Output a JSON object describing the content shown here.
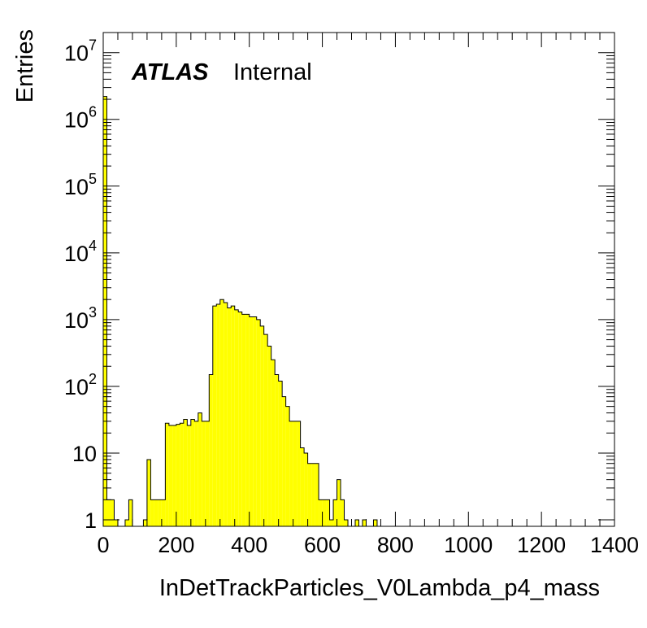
{
  "chart_data": {
    "type": "bar",
    "style": "filled-histogram",
    "xlabel": "InDetTrackParticles_V0Lambda_p4_mass",
    "ylabel": "Entries",
    "experiment_label": "ATLAS",
    "status_label": "Internal",
    "xlim": [
      0,
      1400
    ],
    "ylim": [
      0.8,
      20000000
    ],
    "y_scale": "log",
    "grid": false,
    "fill_color": "#ffff00",
    "line_color": "#000000",
    "x_ticks": [
      {
        "value": 0,
        "label": "0"
      },
      {
        "value": 200,
        "label": "200"
      },
      {
        "value": 400,
        "label": "400"
      },
      {
        "value": 600,
        "label": "600"
      },
      {
        "value": 800,
        "label": "800"
      },
      {
        "value": 1000,
        "label": "1000"
      },
      {
        "value": 1200,
        "label": "1200"
      },
      {
        "value": 1400,
        "label": "1400"
      }
    ],
    "y_ticks": [
      {
        "value": 1,
        "base": "1",
        "exp": ""
      },
      {
        "value": 10,
        "base": "10",
        "exp": ""
      },
      {
        "value": 100,
        "base": "10",
        "exp": "2"
      },
      {
        "value": 1000,
        "base": "10",
        "exp": "3"
      },
      {
        "value": 10000,
        "base": "10",
        "exp": "4"
      },
      {
        "value": 100000,
        "base": "10",
        "exp": "5"
      },
      {
        "value": 1000000,
        "base": "10",
        "exp": "6"
      },
      {
        "value": 10000000,
        "base": "10",
        "exp": "7"
      }
    ],
    "bin_width": 10,
    "bins_low_edge": [
      0,
      10,
      20,
      30,
      40,
      50,
      60,
      70,
      80,
      90,
      100,
      110,
      120,
      130,
      140,
      150,
      160,
      170,
      180,
      190,
      200,
      210,
      220,
      230,
      240,
      250,
      260,
      270,
      280,
      290,
      300,
      310,
      320,
      330,
      340,
      350,
      360,
      370,
      380,
      390,
      400,
      410,
      420,
      430,
      440,
      450,
      460,
      470,
      480,
      490,
      500,
      510,
      520,
      530,
      540,
      550,
      560,
      570,
      580,
      590,
      600,
      610,
      620,
      630,
      640,
      650,
      660,
      670,
      680,
      690,
      700,
      710,
      720,
      730,
      740,
      750,
      760,
      770,
      780,
      790,
      800,
      810,
      820,
      830,
      840,
      850,
      860,
      870,
      880,
      890,
      900,
      910,
      920,
      930,
      940,
      950,
      960,
      970,
      980,
      990,
      1000
    ],
    "values": [
      2200000,
      2,
      2,
      1,
      0,
      0,
      1,
      2,
      0,
      0,
      0,
      1,
      8,
      2,
      2,
      2,
      2,
      28,
      26,
      26,
      27,
      28,
      32,
      26,
      32,
      30,
      40,
      30,
      30,
      150,
      1600,
      1700,
      2000,
      1800,
      1500,
      1600,
      1400,
      1300,
      1200,
      1200,
      1100,
      1100,
      1000,
      800,
      600,
      400,
      250,
      150,
      120,
      70,
      50,
      30,
      30,
      30,
      12,
      10,
      7,
      7,
      7,
      2,
      2,
      2,
      1,
      2,
      4,
      2,
      1,
      0,
      0,
      1,
      0,
      1,
      0,
      0,
      1,
      0,
      0,
      0,
      0,
      0,
      0,
      0,
      0,
      0,
      0,
      0,
      0,
      0,
      0,
      0,
      0,
      0,
      0,
      0,
      0,
      0,
      0,
      0,
      0,
      0,
      0
    ]
  }
}
